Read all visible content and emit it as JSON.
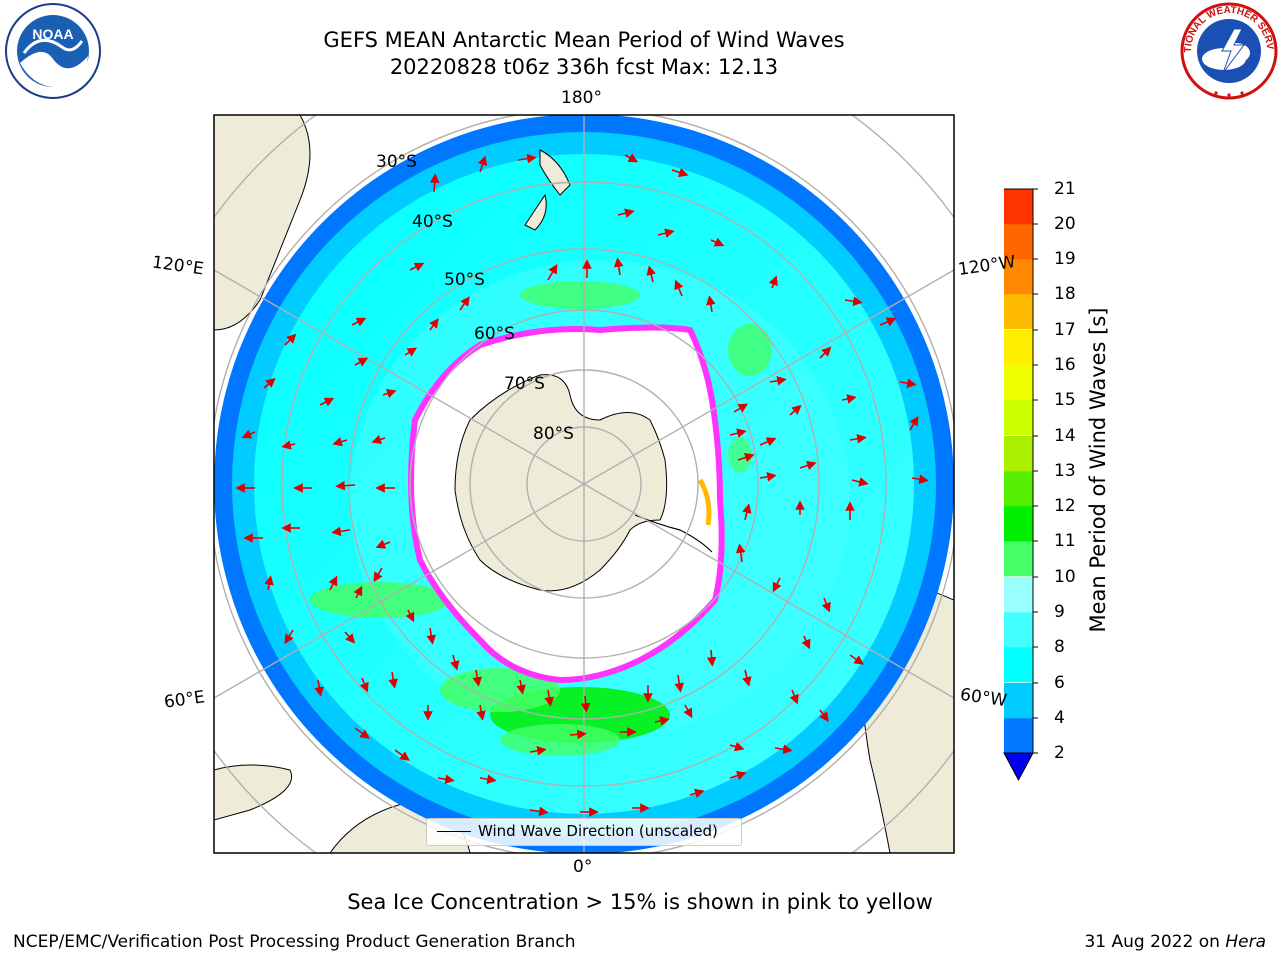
{
  "header": {
    "title_line1": "GEFS MEAN Antarctic Mean Period of Wind Waves",
    "title_line2": "20220828 t06z 336h fcst   Max: 12.13"
  },
  "logos": {
    "left": "noaa-logo",
    "left_text": "NOAA",
    "right": "national-weather-service-logo",
    "right_text": "NATIONAL WEATHER SERVICE"
  },
  "map": {
    "projection": "south-polar-stereographic",
    "longitude_labels": {
      "top": "180°",
      "upper_left": "120°E",
      "upper_right": "120°W",
      "lower_left": "60°E",
      "lower_right": "60°W",
      "bottom": "0°"
    },
    "latitude_labels": [
      "30°S",
      "40°S",
      "50°S",
      "60°S",
      "70°S",
      "80°S"
    ],
    "colors": {
      "land": "#eeebd8",
      "ocean_outside": "#ffffff",
      "gridline": "#b0b0b0",
      "arrow": "#e00000",
      "sea_ice": "#ff33ff"
    }
  },
  "colorbar": {
    "label": "Mean Period of Wind Waves [s]",
    "ticks": [
      "2",
      "4",
      "6",
      "8",
      "9",
      "10",
      "11",
      "12",
      "13",
      "14",
      "15",
      "16",
      "17",
      "18",
      "19",
      "20",
      "21"
    ],
    "colors": [
      "#0077ff",
      "#00ccff",
      "#00ffff",
      "#44ffff",
      "#99ffff",
      "#44ff66",
      "#00ee00",
      "#55ee00",
      "#aaee00",
      "#ccff00",
      "#eeff00",
      "#ffee00",
      "#ffbb00",
      "#ff8800",
      "#ff6600",
      "#ff3300"
    ],
    "under_color": "#0000ee"
  },
  "legend": {
    "label": "Wind Wave Direction (unscaled)"
  },
  "footer": {
    "note": "Sea Ice Concentration > 15% is shown in pink to yellow",
    "credit": "NCEP/EMC/Verification Post Processing Product Generation Branch",
    "date": "31 Aug 2022 on",
    "machine": "Hera"
  }
}
